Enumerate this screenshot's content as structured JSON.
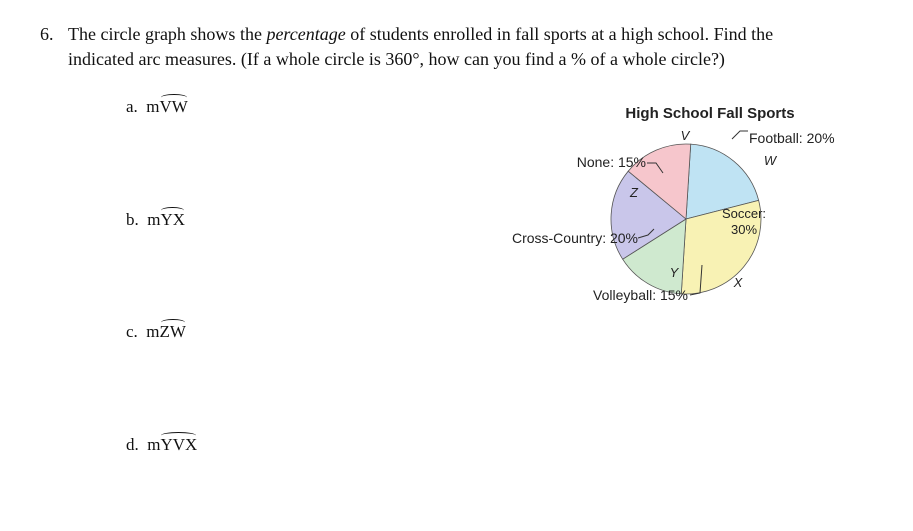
{
  "problem": {
    "number": "6.",
    "line1_a": "The circle graph shows the ",
    "line1_em": "percentage",
    "line1_b": " of students enrolled in fall sports at a high school. Find the",
    "line2": "indicated arc measures. (If a whole circle is 360°, how can you find a % of a whole circle?)"
  },
  "questions": [
    {
      "letter": "a.",
      "prefix": "m",
      "arc": "VW"
    },
    {
      "letter": "b.",
      "prefix": "m",
      "arc": "YX"
    },
    {
      "letter": "c.",
      "prefix": "m",
      "arc": "ZW"
    },
    {
      "letter": "d.",
      "prefix": "m",
      "arc": "YVX"
    }
  ],
  "figure": {
    "title": "High School Fall Sports",
    "points": {
      "V": "V",
      "W": "W",
      "X": "X",
      "Y": "Y",
      "Z": "Z"
    },
    "labels": {
      "football": "Football: 20%",
      "none": "None: 15%",
      "soccer_line1": "Soccer:",
      "soccer_line2": "30%",
      "cross_country": "Cross-Country: 20%",
      "volleyball": "Volleyball: 15%"
    },
    "colors": {
      "football": "#bfe3f3",
      "soccer": "#f8f2b4",
      "volleyball": "#cfe9cf",
      "cross_country": "#c9c6ea",
      "none": "#f6c6cc"
    }
  },
  "chart_data": {
    "type": "pie",
    "title": "High School Fall Sports",
    "slices": [
      {
        "label": "Football",
        "value": 20
      },
      {
        "label": "Soccer",
        "value": 30
      },
      {
        "label": "Volleyball",
        "value": 15
      },
      {
        "label": "Cross-Country",
        "value": 20
      },
      {
        "label": "None",
        "value": 15
      }
    ],
    "unit": "%"
  }
}
